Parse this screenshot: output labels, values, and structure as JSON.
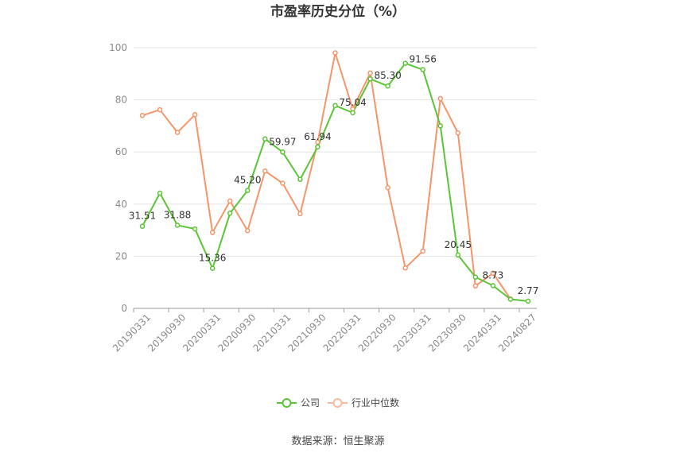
{
  "chart_data": {
    "type": "line",
    "title": "市盈率历史分位（%）",
    "ylim": [
      0,
      100
    ],
    "y_ticks": [
      "0",
      "20",
      "40",
      "60",
      "80",
      "100"
    ],
    "x_tick_labels": [
      "20190331",
      "20190930",
      "20200331",
      "20200930",
      "20210331",
      "20210930",
      "20220331",
      "20220930",
      "20230331",
      "20230930",
      "20240331",
      "20240827"
    ],
    "series": [
      {
        "name": "公司",
        "color": "#5cc437",
        "values": [
          31.51,
          44.2,
          31.88,
          30.5,
          15.36,
          36.5,
          45.2,
          65,
          59.97,
          49.5,
          61.94,
          77.8,
          75.04,
          88,
          85.3,
          94,
          91.56,
          70,
          20.45,
          12,
          8.73,
          3.5,
          2.77
        ]
      },
      {
        "name": "行业中位数",
        "color": "#f4956a",
        "values": [
          74,
          76.2,
          67.5,
          74.3,
          29.1,
          41.2,
          29.8,
          52.7,
          48,
          36.3,
          63.8,
          98,
          76.5,
          90.3,
          46.3,
          15.5,
          22,
          80.5,
          67.3,
          8.6,
          13.5,
          3.6
        ]
      }
    ],
    "data_labels": [
      {
        "series": 0,
        "index": 0,
        "text": "31.51"
      },
      {
        "series": 0,
        "index": 2,
        "text": "31.88"
      },
      {
        "series": 0,
        "index": 4,
        "text": "15.36"
      },
      {
        "series": 0,
        "index": 6,
        "text": "45.20"
      },
      {
        "series": 0,
        "index": 8,
        "text": "59.97"
      },
      {
        "series": 0,
        "index": 10,
        "text": "61.94"
      },
      {
        "series": 0,
        "index": 12,
        "text": "75.04"
      },
      {
        "series": 0,
        "index": 14,
        "text": "85.30"
      },
      {
        "series": 0,
        "index": 16,
        "text": "91.56"
      },
      {
        "series": 0,
        "index": 18,
        "text": "20.45"
      },
      {
        "series": 0,
        "index": 20,
        "text": "8.73"
      },
      {
        "series": 0,
        "index": 22,
        "text": "2.77"
      }
    ],
    "legend_position": "bottom-center",
    "grid": true
  },
  "source_text": "数据来源：恒生聚源"
}
